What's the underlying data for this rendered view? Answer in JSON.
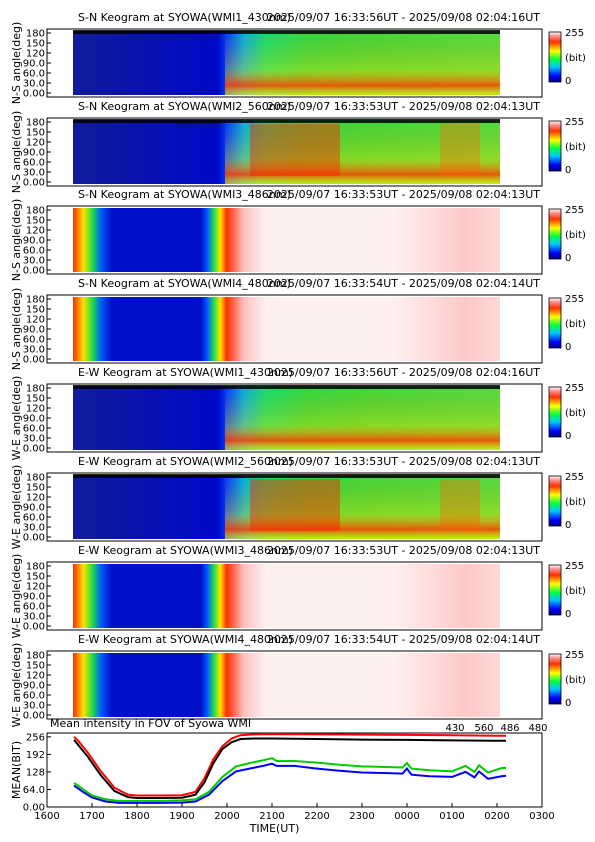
{
  "colorbar": {
    "max": "255",
    "unit": "(bit)",
    "min": "0"
  },
  "panels": [
    {
      "title": "S-N Keogram at SYOWA(WMI1_430nm)",
      "time_range": "2025/09/07 16:33:56UT - 2025/09/08 02:04:16UT",
      "ylabel": "N-S angle(deg)",
      "yticks": [
        "180",
        "150",
        "120",
        "90.0",
        "60.0",
        "30.0",
        "0.00"
      ],
      "palette": "green"
    },
    {
      "title": "S-N Keogram at SYOWA(WMI2_560nm)",
      "time_range": "2025/09/07 16:33:53UT - 2025/09/08 02:04:13UT",
      "ylabel": "N-S angle(deg)",
      "yticks": [
        "180",
        "150",
        "120",
        "90.0",
        "60.0",
        "30.0",
        "0.00"
      ],
      "palette": "green-red"
    },
    {
      "title": "S-N Keogram at SYOWA(WMI3_486nm)",
      "time_range": "2025/09/07 16:33:53UT - 2025/09/08 02:04:13UT",
      "ylabel": "N-S angle(deg)",
      "yticks": [
        "180",
        "150",
        "120",
        "90.0",
        "60.0",
        "30.0",
        "0.00"
      ],
      "palette": "sat"
    },
    {
      "title": "S-N Keogram at SYOWA(WMI4_480nm)",
      "time_range": "2025/09/07 16:33:54UT - 2025/09/08 02:04:14UT",
      "ylabel": "N-S angle(deg)",
      "yticks": [
        "180",
        "150",
        "120",
        "90.0",
        "60.0",
        "30.0",
        "0.00"
      ],
      "palette": "sat"
    },
    {
      "title": "E-W Keogram at SYOWA(WMI1_430nm)",
      "time_range": "2025/09/07 16:33:56UT - 2025/09/08 02:04:16UT",
      "ylabel": "W-E angle(deg)",
      "yticks": [
        "180",
        "150",
        "120",
        "90.0",
        "60.0",
        "30.0",
        "0.00"
      ],
      "palette": "green"
    },
    {
      "title": "E-W Keogram at SYOWA(WMI2_560nm)",
      "time_range": "2025/09/07 16:33:53UT - 2025/09/08 02:04:13UT",
      "ylabel": "W-E angle(deg)",
      "yticks": [
        "180",
        "150",
        "120",
        "90.0",
        "60.0",
        "30.0",
        "0.00"
      ],
      "palette": "green-red"
    },
    {
      "title": "E-W Keogram at SYOWA(WMI3_486nm)",
      "time_range": "2025/09/07 16:33:53UT - 2025/09/08 02:04:13UT",
      "ylabel": "W-E angle(deg)",
      "yticks": [
        "180",
        "150",
        "120",
        "90.0",
        "60.0",
        "30.0",
        "0.00"
      ],
      "palette": "sat"
    },
    {
      "title": "E-W Keogram at SYOWA(WMI4_480nm)",
      "time_range": "2025/09/07 16:33:54UT - 2025/09/08 02:04:14UT",
      "ylabel": "W-E angle(deg)",
      "yticks": [
        "180",
        "150",
        "120",
        "90.0",
        "60.0",
        "30.0",
        "0.00"
      ],
      "palette": "sat"
    }
  ],
  "chart_data": {
    "type": "line",
    "title": "Mean intensity in FOV of Syowa WMI",
    "xlabel": "TIME(UT)",
    "ylabel": "MEAN(BIT)",
    "xlim": [
      16,
      27
    ],
    "ylim": [
      0,
      270
    ],
    "xticks": [
      {
        "v": 16,
        "label": "1600"
      },
      {
        "v": 17,
        "label": "1700"
      },
      {
        "v": 18,
        "label": "1800"
      },
      {
        "v": 19,
        "label": "1900"
      },
      {
        "v": 20,
        "label": "2000"
      },
      {
        "v": 21,
        "label": "2100"
      },
      {
        "v": 22,
        "label": "2200"
      },
      {
        "v": 23,
        "label": "2300"
      },
      {
        "v": 24,
        "label": "0000"
      },
      {
        "v": 25,
        "label": "0100"
      },
      {
        "v": 26,
        "label": "0200"
      },
      {
        "v": 27,
        "label": "0300"
      }
    ],
    "yticks": [
      {
        "v": 256,
        "label": "256"
      },
      {
        "v": 192,
        "label": "192"
      },
      {
        "v": 128,
        "label": "128"
      },
      {
        "v": 64,
        "label": "64.0"
      },
      {
        "v": 0,
        "label": "0.00"
      }
    ],
    "series": [
      {
        "name": "430",
        "color": "#0000ff",
        "points": [
          [
            16.6,
            78
          ],
          [
            16.8,
            55
          ],
          [
            17.0,
            35
          ],
          [
            17.3,
            20
          ],
          [
            17.6,
            15
          ],
          [
            18.0,
            15
          ],
          [
            18.5,
            15
          ],
          [
            19.0,
            16
          ],
          [
            19.3,
            20
          ],
          [
            19.6,
            45
          ],
          [
            19.9,
            95
          ],
          [
            20.2,
            130
          ],
          [
            20.5,
            140
          ],
          [
            20.8,
            150
          ],
          [
            21.0,
            158
          ],
          [
            21.1,
            150
          ],
          [
            21.5,
            150
          ],
          [
            22.0,
            140
          ],
          [
            22.5,
            132
          ],
          [
            23.0,
            126
          ],
          [
            23.5,
            124
          ],
          [
            23.9,
            122
          ],
          [
            24.0,
            140
          ],
          [
            24.1,
            118
          ],
          [
            24.5,
            112
          ],
          [
            25.0,
            110
          ],
          [
            25.3,
            128
          ],
          [
            25.5,
            108
          ],
          [
            25.6,
            130
          ],
          [
            25.8,
            103
          ],
          [
            26.1,
            112
          ],
          [
            26.2,
            114
          ]
        ]
      },
      {
        "name": "560",
        "color": "#00cc00",
        "points": [
          [
            16.6,
            88
          ],
          [
            16.8,
            65
          ],
          [
            17.0,
            42
          ],
          [
            17.3,
            28
          ],
          [
            17.6,
            22
          ],
          [
            18.0,
            22
          ],
          [
            18.5,
            22
          ],
          [
            19.0,
            24
          ],
          [
            19.3,
            28
          ],
          [
            19.6,
            55
          ],
          [
            19.9,
            110
          ],
          [
            20.2,
            148
          ],
          [
            20.5,
            160
          ],
          [
            20.8,
            170
          ],
          [
            21.0,
            178
          ],
          [
            21.1,
            168
          ],
          [
            21.5,
            168
          ],
          [
            22.0,
            162
          ],
          [
            22.5,
            154
          ],
          [
            23.0,
            148
          ],
          [
            23.5,
            146
          ],
          [
            23.9,
            144
          ],
          [
            24.0,
            160
          ],
          [
            24.1,
            140
          ],
          [
            24.5,
            134
          ],
          [
            25.0,
            130
          ],
          [
            25.3,
            150
          ],
          [
            25.5,
            128
          ],
          [
            25.6,
            152
          ],
          [
            25.8,
            126
          ],
          [
            26.1,
            142
          ],
          [
            26.2,
            143
          ]
        ]
      },
      {
        "name": "486",
        "color": "#ff0000",
        "points": [
          [
            16.6,
            256
          ],
          [
            16.7,
            240
          ],
          [
            16.9,
            200
          ],
          [
            17.2,
            130
          ],
          [
            17.5,
            70
          ],
          [
            17.8,
            45
          ],
          [
            18.0,
            42
          ],
          [
            18.5,
            42
          ],
          [
            19.0,
            43
          ],
          [
            19.3,
            55
          ],
          [
            19.5,
            105
          ],
          [
            19.7,
            175
          ],
          [
            19.9,
            222
          ],
          [
            20.1,
            250
          ],
          [
            20.3,
            262
          ],
          [
            20.6,
            265
          ],
          [
            21.0,
            266
          ],
          [
            22.0,
            265
          ],
          [
            23.0,
            264
          ],
          [
            24.0,
            263
          ],
          [
            25.0,
            262
          ],
          [
            26.0,
            260
          ],
          [
            26.2,
            260
          ]
        ]
      },
      {
        "name": "480",
        "color": "#000000",
        "points": [
          [
            16.6,
            245
          ],
          [
            16.7,
            225
          ],
          [
            16.9,
            185
          ],
          [
            17.2,
            115
          ],
          [
            17.5,
            58
          ],
          [
            17.8,
            36
          ],
          [
            18.0,
            33
          ],
          [
            18.5,
            33
          ],
          [
            19.0,
            34
          ],
          [
            19.3,
            45
          ],
          [
            19.5,
            90
          ],
          [
            19.7,
            160
          ],
          [
            19.9,
            212
          ],
          [
            20.1,
            236
          ],
          [
            20.3,
            248
          ],
          [
            20.6,
            250
          ],
          [
            21.0,
            250
          ],
          [
            22.0,
            248
          ],
          [
            23.0,
            246
          ],
          [
            24.0,
            245
          ],
          [
            25.0,
            243
          ],
          [
            26.0,
            242
          ],
          [
            26.2,
            242
          ]
        ]
      }
    ]
  }
}
